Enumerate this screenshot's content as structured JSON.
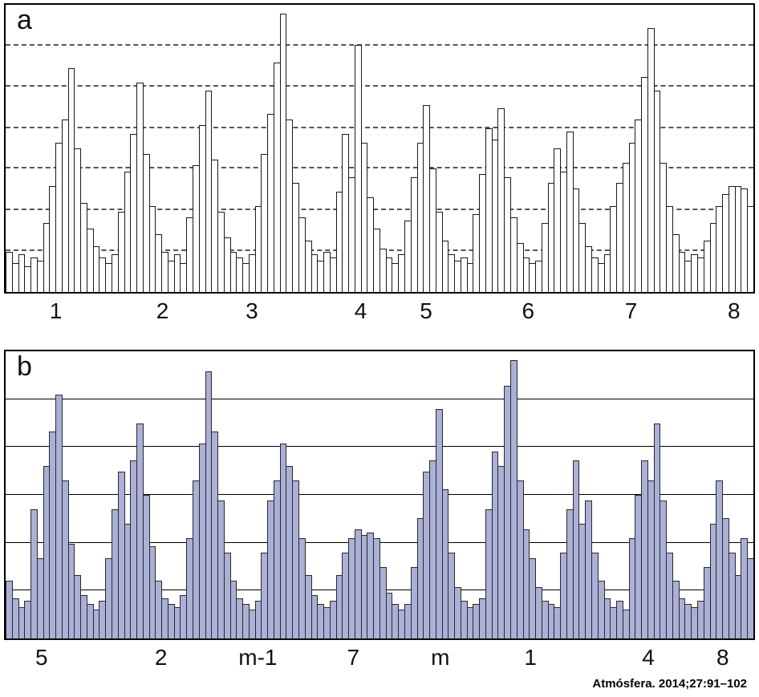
{
  "caption": "Atmósfera. 2014;27:91–102",
  "chart_data": [
    {
      "type": "bar",
      "panel_label": "a",
      "title": "",
      "xlabel": "",
      "ylabel": "",
      "ylim": [
        0,
        100
      ],
      "grid": "on",
      "gridline_style": "dashed",
      "gridline_values": [
        14.3,
        28.6,
        42.9,
        57.1,
        71.4,
        85.7
      ],
      "bar_fill": "#ffffff",
      "bar_border": "#1a1a1a",
      "x_ticks": [
        {
          "label": "1",
          "pos": 6.9
        },
        {
          "label": "2",
          "pos": 21.1
        },
        {
          "label": "3",
          "pos": 33.0
        },
        {
          "label": "4",
          "pos": 47.5
        },
        {
          "label": "5",
          "pos": 56.2
        },
        {
          "label": "6",
          "pos": 69.8
        },
        {
          "label": "7",
          "pos": 83.5
        },
        {
          "label": "8",
          "pos": 97.2
        }
      ],
      "values": [
        14,
        10,
        13,
        9,
        12,
        11,
        24,
        37,
        52,
        60,
        78,
        50,
        31,
        22,
        16,
        12,
        10,
        13,
        28,
        42,
        55,
        73,
        48,
        30,
        20,
        14,
        11,
        13,
        10,
        26,
        44,
        58,
        70,
        46,
        28,
        19,
        14,
        12,
        10,
        13,
        30,
        48,
        62,
        80,
        97,
        60,
        38,
        26,
        18,
        13,
        11,
        14,
        12,
        35,
        55,
        40,
        86,
        52,
        33,
        22,
        15,
        12,
        10,
        13,
        25,
        40,
        52,
        65,
        43,
        28,
        18,
        13,
        11,
        12,
        10,
        27,
        41,
        57,
        53,
        64,
        40,
        26,
        17,
        12,
        10,
        11,
        24,
        38,
        50,
        42,
        56,
        36,
        24,
        16,
        12,
        10,
        13,
        30,
        38,
        45,
        52,
        60,
        75,
        92,
        70,
        45,
        30,
        20,
        14,
        11,
        13,
        12,
        18,
        24,
        30,
        34,
        37,
        37,
        36,
        30
      ]
    },
    {
      "type": "bar",
      "panel_label": "b",
      "title": "",
      "xlabel": "",
      "ylabel": "",
      "ylim": [
        0,
        100
      ],
      "grid": "on",
      "gridline_style": "solid",
      "gridline_values": [
        16.7,
        33.3,
        50.0,
        66.7,
        83.3
      ],
      "bar_fill": "#aab0d6",
      "bar_border": "#2a2a2a",
      "x_ticks": [
        {
          "label": "5",
          "pos": 5.0
        },
        {
          "label": "2",
          "pos": 20.9
        },
        {
          "label": "m-1",
          "pos": 33.8
        },
        {
          "label": "7",
          "pos": 46.5
        },
        {
          "label": "m",
          "pos": 58.1
        },
        {
          "label": "1",
          "pos": 70.1
        },
        {
          "label": "4",
          "pos": 85.8
        },
        {
          "label": "8",
          "pos": 95.7
        }
      ],
      "values": [
        20,
        14,
        11,
        13,
        45,
        28,
        60,
        72,
        85,
        55,
        33,
        22,
        15,
        12,
        10,
        13,
        28,
        45,
        58,
        40,
        62,
        75,
        50,
        32,
        20,
        14,
        12,
        11,
        15,
        35,
        55,
        68,
        93,
        72,
        48,
        30,
        20,
        14,
        12,
        10,
        13,
        30,
        48,
        55,
        68,
        60,
        55,
        35,
        22,
        15,
        12,
        11,
        13,
        22,
        30,
        35,
        38,
        36,
        37,
        35,
        25,
        16,
        12,
        10,
        12,
        25,
        42,
        58,
        62,
        80,
        52,
        30,
        18,
        13,
        11,
        12,
        14,
        45,
        65,
        60,
        88,
        97,
        55,
        38,
        28,
        18,
        13,
        12,
        11,
        30,
        45,
        62,
        40,
        48,
        30,
        20,
        14,
        11,
        13,
        10,
        35,
        50,
        62,
        55,
        75,
        48,
        30,
        20,
        14,
        12,
        11,
        13,
        25,
        40,
        55,
        42,
        30,
        22,
        35,
        28
      ]
    }
  ]
}
